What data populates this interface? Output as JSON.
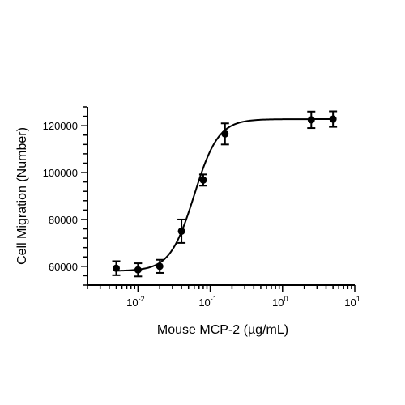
{
  "chart_data": {
    "type": "scatter",
    "xlabel": "Mouse MCP-2 (µg/mL)",
    "ylabel": "Cell Migration (Number)",
    "x_scale": "log",
    "xlim": [
      0.002,
      10
    ],
    "ylim": [
      52000,
      128000
    ],
    "x_ticks": [
      {
        "value": 0.01,
        "base": "10",
        "exp": "-2"
      },
      {
        "value": 0.1,
        "base": "10",
        "exp": "-1"
      },
      {
        "value": 1,
        "base": "10",
        "exp": "0"
      },
      {
        "value": 10,
        "base": "10",
        "exp": "1"
      }
    ],
    "y_ticks": [
      60000,
      80000,
      100000,
      120000
    ],
    "y_tick_labels": [
      "60000",
      "80000",
      "100000",
      "120000"
    ],
    "grid": false,
    "legend": "none",
    "series": [
      {
        "x": [
          0.005,
          0.01,
          0.02,
          0.04,
          0.08,
          0.16,
          2.5,
          5
        ],
        "y": [
          59200,
          58500,
          60000,
          75000,
          96800,
          116500,
          122500,
          122800
        ],
        "error": [
          3000,
          2800,
          2800,
          5000,
          2400,
          4500,
          3500,
          3300
        ],
        "marker": "circle"
      }
    ],
    "fit_curve": {
      "model": "4PL",
      "bottom": 58000,
      "top": 122800,
      "ec50": 0.06,
      "hill": 2.6
    }
  }
}
